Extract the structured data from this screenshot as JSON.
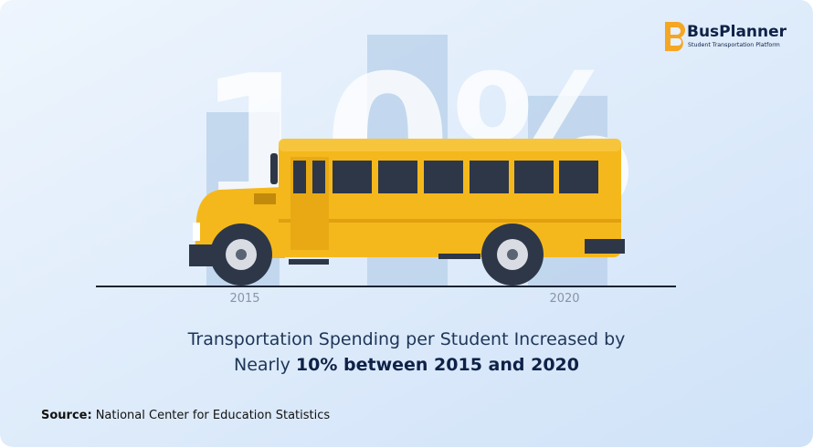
{
  "logo": {
    "name": "BusPlanner",
    "tagline": "Student Transportation Platform"
  },
  "graphic": {
    "big_text": "10%",
    "labels": [
      "2015",
      "2020"
    ]
  },
  "headline": {
    "line1": "Transportation Spending per Student Increased by",
    "line2_prefix": "Nearly",
    "line2_bold": "10% between 2015 and 2020"
  },
  "source": {
    "label": "Source:",
    "text": "National Center for Education Statistics"
  }
}
